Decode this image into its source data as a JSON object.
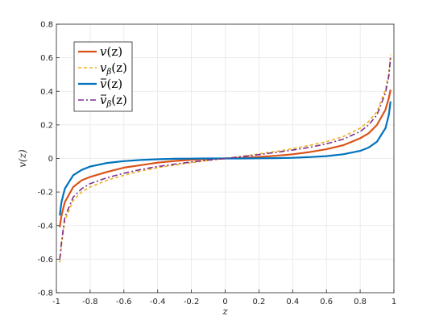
{
  "chart_data": {
    "type": "line",
    "xlabel": "z",
    "ylabel": "v(z)",
    "xlim": [
      -1,
      1
    ],
    "ylim": [
      -0.8,
      0.8
    ],
    "grid": true,
    "legend_position": "top-left",
    "x_ticks": [
      "-1",
      "-0.8",
      "-0.6",
      "-0.4",
      "-0.2",
      "0",
      "0.2",
      "0.4",
      "0.6",
      "0.8",
      "1"
    ],
    "y_ticks": [
      "-0.8",
      "-0.6",
      "-0.4",
      "-0.2",
      "0",
      "0.2",
      "0.4",
      "0.6",
      "0.8"
    ],
    "x": [
      -0.98,
      -0.97,
      -0.95,
      -0.9,
      -0.85,
      -0.8,
      -0.7,
      -0.6,
      -0.5,
      -0.4,
      -0.3,
      -0.2,
      -0.1,
      0,
      0.1,
      0.2,
      0.3,
      0.4,
      0.5,
      0.6,
      0.7,
      0.8,
      0.85,
      0.9,
      0.95,
      0.97,
      0.98
    ],
    "series": [
      {
        "name": "v(z)",
        "color": "#D95319",
        "style": "solid",
        "values": [
          -0.41,
          -0.34,
          -0.26,
          -0.17,
          -0.13,
          -0.11,
          -0.08,
          -0.055,
          -0.04,
          -0.025,
          -0.015,
          -0.008,
          -0.003,
          0,
          0.004,
          0.009,
          0.016,
          0.025,
          0.038,
          0.055,
          0.079,
          0.12,
          0.15,
          0.2,
          0.29,
          0.36,
          0.41
        ]
      },
      {
        "name": "v_β(z)",
        "color": "#EDB120",
        "style": "dashed",
        "values": [
          -0.62,
          -0.52,
          -0.37,
          -0.25,
          -0.2,
          -0.17,
          -0.13,
          -0.1,
          -0.075,
          -0.055,
          -0.04,
          -0.025,
          -0.012,
          0,
          0.013,
          0.027,
          0.042,
          0.058,
          0.078,
          0.1,
          0.13,
          0.18,
          0.22,
          0.28,
          0.41,
          0.51,
          0.62
        ]
      },
      {
        "name": "v̄(z)",
        "color": "#0072BD",
        "style": "solid",
        "values": [
          -0.34,
          -0.26,
          -0.18,
          -0.1,
          -0.068,
          -0.048,
          -0.027,
          -0.016,
          -0.009,
          -0.005,
          -0.002,
          -0.001,
          0,
          0,
          0,
          0.001,
          0.002,
          0.004,
          0.008,
          0.014,
          0.025,
          0.045,
          0.065,
          0.1,
          0.18,
          0.26,
          0.34
        ]
      },
      {
        "name": "v̄_β(z)",
        "color": "#7E2F8E",
        "style": "dashdot",
        "values": [
          -0.6,
          -0.5,
          -0.35,
          -0.23,
          -0.18,
          -0.15,
          -0.115,
          -0.088,
          -0.066,
          -0.048,
          -0.034,
          -0.021,
          -0.01,
          0,
          0.011,
          0.023,
          0.036,
          0.05,
          0.066,
          0.087,
          0.115,
          0.16,
          0.2,
          0.26,
          0.39,
          0.49,
          0.6
        ]
      }
    ]
  },
  "legend": {
    "items": [
      {
        "base": "v",
        "accent": "",
        "sub": "",
        "arg": "(z)"
      },
      {
        "base": "v",
        "accent": "",
        "sub": "β",
        "arg": "(z)"
      },
      {
        "base": "v",
        "accent": "bar",
        "sub": "",
        "arg": "(z)"
      },
      {
        "base": "v",
        "accent": "bar",
        "sub": "β",
        "arg": "(z)"
      }
    ]
  }
}
